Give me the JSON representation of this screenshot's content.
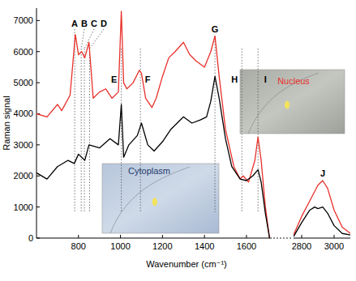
{
  "chart_data": [
    {
      "type": "line",
      "y_label": "Raman signal",
      "x_label": "Wavenumber (cm⁻¹)",
      "xlim": [
        600,
        1720
      ],
      "xticks": [
        800,
        1000,
        1200,
        1400,
        1600
      ],
      "ylim": [
        0,
        7400
      ],
      "yticks": [
        0,
        1000,
        2000,
        3000,
        4000,
        5000,
        6000,
        7000
      ],
      "grid": false,
      "series": [
        {
          "name": "Nucleus",
          "color": "#e8302a",
          "x": [
            600,
            650,
            700,
            720,
            760,
            785,
            800,
            815,
            830,
            850,
            870,
            900,
            930,
            960,
            990,
            1004,
            1015,
            1030,
            1060,
            1090,
            1100,
            1120,
            1150,
            1170,
            1200,
            1230,
            1260,
            1300,
            1330,
            1360,
            1400,
            1430,
            1450,
            1470,
            1500,
            1540,
            1570,
            1585,
            1610,
            1640,
            1655,
            1670,
            1690,
            1710
          ],
          "values": [
            4000,
            3900,
            4300,
            4100,
            4600,
            6550,
            5900,
            6000,
            5800,
            6300,
            4500,
            4700,
            4800,
            4500,
            4700,
            7300,
            5000,
            4800,
            5000,
            5400,
            5300,
            4500,
            4200,
            4500,
            5200,
            5800,
            6000,
            6300,
            5900,
            5700,
            5500,
            6000,
            6500,
            5200,
            3500,
            2300,
            1900,
            2000,
            1800,
            2500,
            3250,
            2500,
            1000,
            0
          ]
        },
        {
          "name": "Cytoplasm",
          "color": "#000000",
          "x": [
            600,
            650,
            700,
            750,
            780,
            800,
            830,
            850,
            900,
            950,
            990,
            1004,
            1015,
            1040,
            1080,
            1100,
            1130,
            1160,
            1200,
            1240,
            1270,
            1300,
            1340,
            1380,
            1410,
            1430,
            1450,
            1470,
            1500,
            1530,
            1570,
            1600,
            1630,
            1655,
            1670,
            1690,
            1710
          ],
          "values": [
            2100,
            1900,
            2300,
            2500,
            2400,
            2700,
            2500,
            3000,
            2900,
            3200,
            3000,
            4300,
            2600,
            3000,
            3300,
            3700,
            3000,
            2800,
            3100,
            3500,
            3700,
            3900,
            3700,
            3800,
            3900,
            4400,
            5200,
            4500,
            3200,
            2300,
            1900,
            1850,
            2000,
            2200,
            1800,
            800,
            0
          ]
        }
      ],
      "peaks": [
        {
          "label": "A",
          "x": 782
        },
        {
          "label": "B",
          "x": 813
        },
        {
          "label": "C",
          "x": 828
        },
        {
          "label": "D",
          "x": 853
        },
        {
          "label": "E",
          "x": 1004
        },
        {
          "label": "F",
          "x": 1095
        },
        {
          "label": "G",
          "x": 1450
        },
        {
          "label": "H",
          "x": 1578
        },
        {
          "label": "I",
          "x": 1655
        }
      ]
    },
    {
      "type": "line",
      "xlim": [
        2750,
        3100
      ],
      "xticks": [
        2800,
        3000
      ],
      "ylim": [
        0,
        7400
      ],
      "tick_labels": "x",
      "grid": false,
      "series": [
        {
          "color": "#e8302a",
          "x": [
            2750,
            2800,
            2850,
            2880,
            2900,
            2930,
            2960,
            3000,
            3050,
            3100
          ],
          "values": [
            100,
            700,
            1200,
            1500,
            1700,
            1850,
            1600,
            900,
            350,
            150
          ]
        },
        {
          "color": "#000000",
          "x": [
            2750,
            2800,
            2850,
            2880,
            2900,
            2930,
            2960,
            3000,
            3050,
            3100
          ],
          "values": [
            50,
            500,
            900,
            1000,
            950,
            1000,
            800,
            400,
            150,
            100
          ]
        }
      ],
      "peaks": [
        {
          "label": "J",
          "x": 2930
        }
      ]
    }
  ]
}
